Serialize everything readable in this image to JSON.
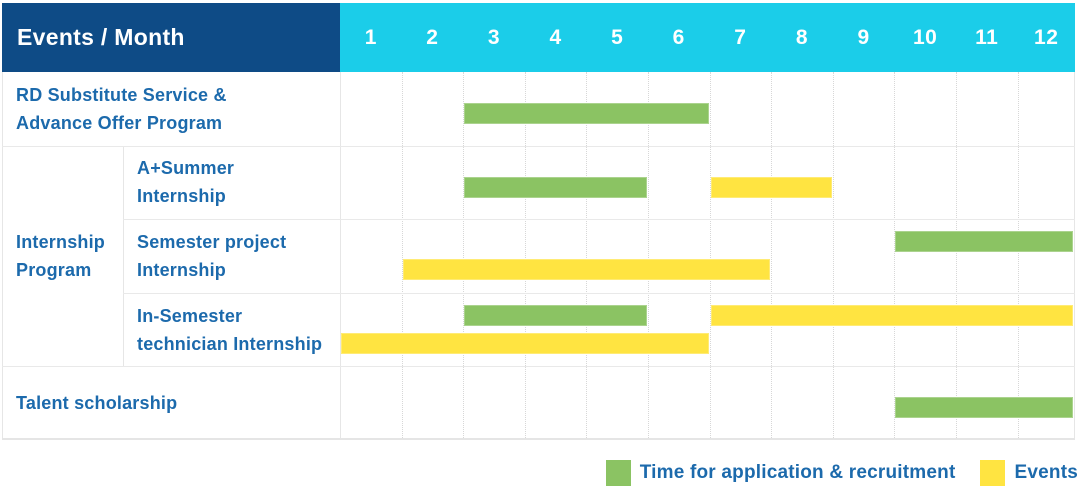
{
  "colors": {
    "header_navy": "#0E4B86",
    "header_cyan": "#1BCDE9",
    "label_blue": "#1C6AAC",
    "application_green": "#8BC363",
    "event_yellow": "#FFE441"
  },
  "chart_data": {
    "type": "gantt",
    "title": "Events / Month",
    "x_unit": "month",
    "x_range": [
      1,
      12
    ],
    "months": [
      "1",
      "2",
      "3",
      "4",
      "5",
      "6",
      "7",
      "8",
      "9",
      "10",
      "11",
      "12"
    ],
    "legend_position": "bottom-right",
    "legend": [
      {
        "kind": "application",
        "label": "Time for application & recruitment",
        "color": "#8BC363"
      },
      {
        "kind": "event",
        "label": "Events",
        "color": "#FFE441"
      }
    ],
    "groups": [
      {
        "label": "Internship Program",
        "label_lines": [
          "Internship",
          "Program"
        ],
        "row_start": 1,
        "row_end": 3
      }
    ],
    "rows": [
      {
        "label": "RD Substitute Service & Advance Offer Program",
        "label_lines": [
          "RD Substitute Service &",
          "Advance Offer Program"
        ],
        "in_group": false,
        "bars": [
          {
            "kind": "application",
            "start_month": 3,
            "end_month": 6,
            "lane": "single"
          }
        ]
      },
      {
        "label": "A+Summer Internship",
        "label_lines": [
          "A+Summer",
          "Internship"
        ],
        "in_group": true,
        "bars": [
          {
            "kind": "application",
            "start_month": 3,
            "end_month": 5,
            "lane": "single"
          },
          {
            "kind": "event",
            "start_month": 7,
            "end_month": 8,
            "lane": "single"
          }
        ]
      },
      {
        "label": "Semester project Internship",
        "label_lines": [
          "Semester project",
          "Internship"
        ],
        "in_group": true,
        "bars": [
          {
            "kind": "application",
            "start_month": 10,
            "end_month": 12,
            "lane": "top"
          },
          {
            "kind": "event",
            "start_month": 2,
            "end_month": 7,
            "lane": "bottom"
          }
        ]
      },
      {
        "label": "In-Semester technician Internship",
        "label_lines": [
          "In-Semester",
          "technician Internship"
        ],
        "in_group": true,
        "bars": [
          {
            "kind": "application",
            "start_month": 3,
            "end_month": 5,
            "lane": "top"
          },
          {
            "kind": "event",
            "start_month": 7,
            "end_month": 12,
            "lane": "top"
          },
          {
            "kind": "event",
            "start_month": 1,
            "end_month": 6,
            "lane": "bottom"
          }
        ]
      },
      {
        "label": "Talent scholarship",
        "label_lines": [
          "Talent scholarship"
        ],
        "in_group": false,
        "bars": [
          {
            "kind": "application",
            "start_month": 10,
            "end_month": 12,
            "lane": "single"
          }
        ]
      }
    ]
  }
}
